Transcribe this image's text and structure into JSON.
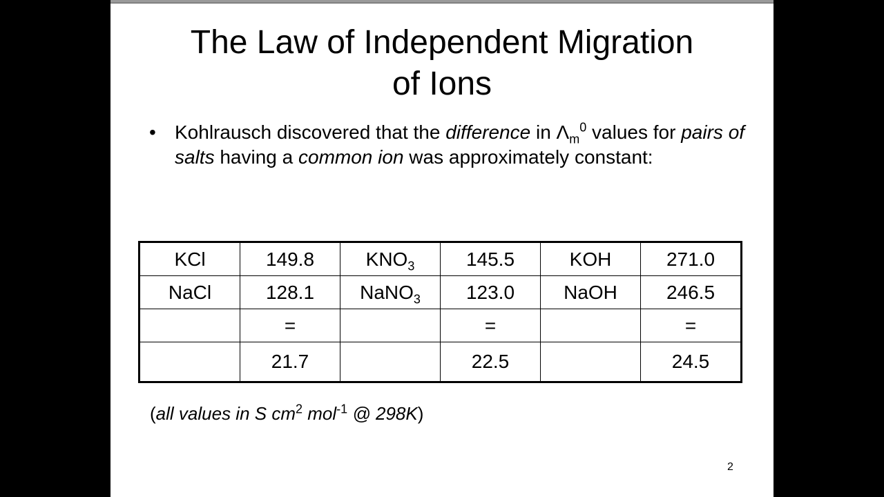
{
  "title": {
    "line1": "The Law of Independent Migration",
    "line2": "of Ions"
  },
  "bullet": {
    "marker": "•",
    "t1": "Kohlrausch discovered that the ",
    "t2_italic": "difference",
    "t3": " in Λ",
    "t3_sub": "m",
    "t3_sup": "0",
    "t4": " values for ",
    "t5_italic": "pairs of salts",
    "t6": " having a ",
    "t7_italic": "common ion",
    "t8": " was approximately constant:"
  },
  "table": {
    "rows": [
      [
        {
          "t": "KCl"
        },
        {
          "t": "149.8"
        },
        {
          "t": "KNO",
          "sub": "3"
        },
        {
          "t": "145.5"
        },
        {
          "t": "KOH"
        },
        {
          "t": "271.0"
        }
      ],
      [
        {
          "t": "NaCl"
        },
        {
          "t": "128.1"
        },
        {
          "t": "NaNO",
          "sub": "3"
        },
        {
          "t": "123.0"
        },
        {
          "t": "NaOH"
        },
        {
          "t": "246.5"
        }
      ],
      [
        {
          "t": ""
        },
        {
          "t": "="
        },
        {
          "t": ""
        },
        {
          "t": "="
        },
        {
          "t": ""
        },
        {
          "t": "="
        }
      ],
      [
        {
          "t": ""
        },
        {
          "t": "21.7"
        },
        {
          "t": ""
        },
        {
          "t": "22.5"
        },
        {
          "t": ""
        },
        {
          "t": "24.5"
        }
      ]
    ]
  },
  "footnote": {
    "open": "(",
    "a": "all values in S cm",
    "sup1": "2",
    "b": " mol",
    "sup2": "-1",
    "c": " @ 298K",
    "close": ")"
  },
  "page_number": "2"
}
